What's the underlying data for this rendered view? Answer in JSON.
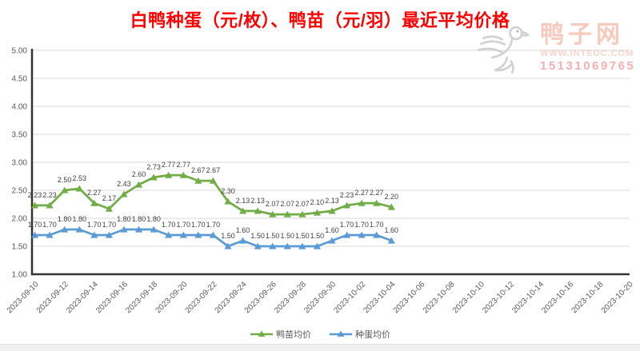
{
  "title": "白鸭种蛋（元/枚）、鸭苗（元/羽）最近平均价格",
  "title_color": "#FF0000",
  "watermark": {
    "site_name": "鸭子网",
    "url": "WWW.INTEDC.COM",
    "phone": "15131069765"
  },
  "chart_data": {
    "type": "line",
    "title": "白鸭种蛋（元/枚）、鸭苗（元/羽）最近平均价格",
    "grid": true,
    "legend_position": "bottom",
    "y_axis": {
      "min": 1.0,
      "max": 5.0,
      "step": 0.5,
      "tick_labels": [
        "5.00",
        "4.50",
        "4.00",
        "3.50",
        "3.00",
        "2.50",
        "2.00",
        "1.50",
        "1.00"
      ]
    },
    "x_tick_labels": [
      "2023-09-10",
      "2023-09-12",
      "2023-09-14",
      "2023-09-16",
      "2023-09-18",
      "2023-09-20",
      "2023-09-22",
      "2023-09-24",
      "2023-09-26",
      "2023-09-28",
      "2023-09-30",
      "2023-10-02",
      "2023-10-04",
      "2023-10-06",
      "2023-10-08",
      "2023-10-10",
      "2023-10-12",
      "2023-10-14",
      "2023-10-16",
      "2023-10-18",
      "2023-10-20"
    ],
    "x_dates": [
      "2023-09-10",
      "2023-09-11",
      "2023-09-12",
      "2023-09-13",
      "2023-09-14",
      "2023-09-15",
      "2023-09-16",
      "2023-09-17",
      "2023-09-18",
      "2023-09-19",
      "2023-09-20",
      "2023-09-21",
      "2023-09-22",
      "2023-09-23",
      "2023-09-24",
      "2023-09-25",
      "2023-09-26",
      "2023-09-27",
      "2023-09-28",
      "2023-09-29",
      "2023-09-30",
      "2023-10-01",
      "2023-10-02",
      "2023-10-03",
      "2023-10-04"
    ],
    "series": [
      {
        "name": "鸭苗均价",
        "color": "#70AD47",
        "marker": "triangle",
        "values": [
          2.23,
          2.23,
          2.5,
          2.53,
          2.27,
          2.17,
          2.43,
          2.6,
          2.73,
          2.77,
          2.77,
          2.67,
          2.67,
          2.3,
          2.13,
          2.13,
          2.07,
          2.07,
          2.07,
          2.1,
          2.13,
          2.23,
          2.27,
          2.27,
          2.2
        ]
      },
      {
        "name": "种蛋均价",
        "color": "#5B9BD5",
        "marker": "triangle",
        "values": [
          1.7,
          1.7,
          1.8,
          1.8,
          1.7,
          1.7,
          1.8,
          1.8,
          1.8,
          1.7,
          1.7,
          1.7,
          1.7,
          1.5,
          1.6,
          1.5,
          1.5,
          1.5,
          1.5,
          1.5,
          1.6,
          1.7,
          1.7,
          1.7,
          1.6
        ]
      }
    ]
  }
}
